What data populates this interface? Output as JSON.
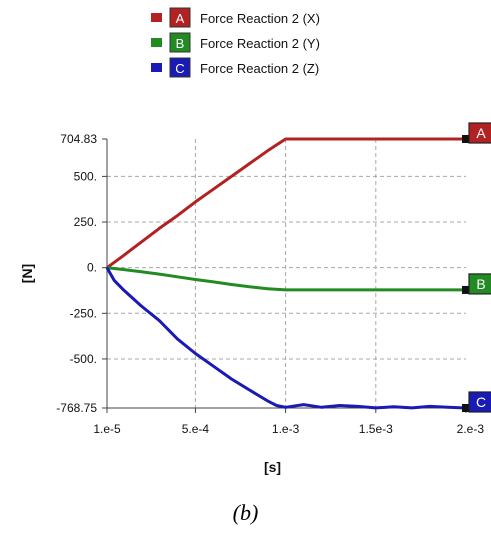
{
  "chart_data": {
    "type": "line",
    "title": "",
    "xlabel": "[s]",
    "ylabel": "[N]",
    "xlim": [
      1e-05,
      0.002
    ],
    "ylim": [
      -768.75,
      704.83
    ],
    "x_ticks": [
      {
        "value": 1e-05,
        "label": "1.e-5"
      },
      {
        "value": 0.0005,
        "label": "5.e-4"
      },
      {
        "value": 0.001,
        "label": "1.e-3"
      },
      {
        "value": 0.0015,
        "label": "1.5e-3"
      },
      {
        "value": 0.002,
        "label": "2.e-3"
      }
    ],
    "y_ticks": [
      {
        "value": 704.83,
        "label": "704.83"
      },
      {
        "value": 500,
        "label": "500."
      },
      {
        "value": 250,
        "label": "250."
      },
      {
        "value": 0,
        "label": "0."
      },
      {
        "value": -250,
        "label": "-250."
      },
      {
        "value": -500,
        "label": "-500."
      },
      {
        "value": -768.75,
        "label": "-768.75"
      }
    ],
    "grid": true,
    "legend_position": "top",
    "series": [
      {
        "name": "Force Reaction 2  (X)",
        "marker": "A",
        "color": "#b22222",
        "x": [
          1e-05,
          0.0001,
          0.0002,
          0.0003,
          0.0004,
          0.0005,
          0.0006,
          0.0007,
          0.0008,
          0.0009,
          0.001,
          0.0012,
          0.0014,
          0.0016,
          0.0018,
          0.002
        ],
        "y": [
          0,
          65,
          140,
          215,
          285,
          360,
          430,
          500,
          570,
          640,
          704.83,
          704.83,
          704.83,
          704.83,
          704.83,
          704.83
        ]
      },
      {
        "name": "Force Reaction 2  (Y)",
        "marker": "B",
        "color": "#228b22",
        "x": [
          1e-05,
          0.0001,
          0.0002,
          0.0003,
          0.0004,
          0.0005,
          0.0006,
          0.0007,
          0.0008,
          0.0009,
          0.001,
          0.0012,
          0.0014,
          0.0016,
          0.0018,
          0.002
        ],
        "y": [
          0,
          -10,
          -22,
          -35,
          -50,
          -65,
          -78,
          -92,
          -105,
          -115,
          -122,
          -122,
          -122,
          -122,
          -122,
          -122
        ]
      },
      {
        "name": "Force Reaction 2  (Z)",
        "marker": "C",
        "color": "#1a1ab4",
        "x": [
          1e-05,
          5e-05,
          0.0001,
          0.0002,
          0.0003,
          0.0004,
          0.0005,
          0.0006,
          0.0007,
          0.0008,
          0.0009,
          0.00095,
          0.001,
          0.0011,
          0.0012,
          0.0013,
          0.0014,
          0.0015,
          0.0016,
          0.0017,
          0.0018,
          0.0019,
          0.002
        ],
        "y": [
          0,
          -70,
          -120,
          -210,
          -290,
          -390,
          -470,
          -540,
          -610,
          -670,
          -730,
          -755,
          -765,
          -750,
          -765,
          -755,
          -760,
          -768,
          -762,
          -768,
          -760,
          -765,
          -768.75
        ]
      }
    ]
  },
  "caption": "(b)"
}
